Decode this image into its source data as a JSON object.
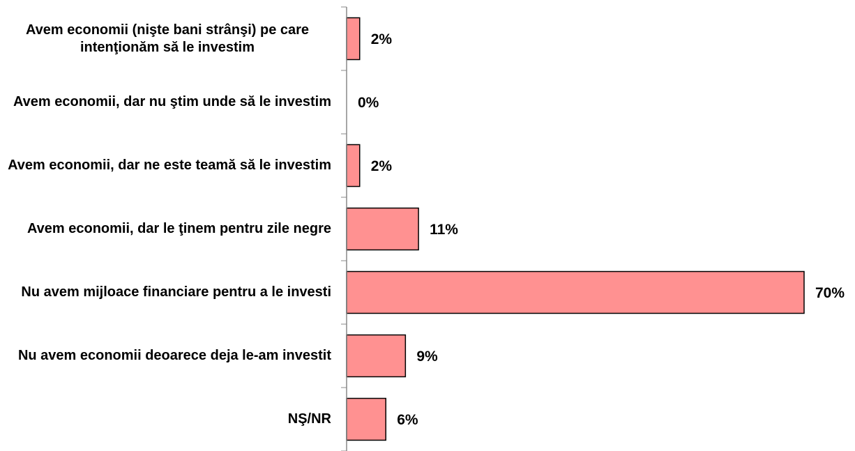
{
  "chart_data": {
    "type": "bar",
    "orientation": "horizontal",
    "categories": [
      "Avem economii (nişte bani strânşi) pe care intenţionăm să le investim",
      "Avem economii, dar nu ştim unde să le investim",
      "Avem economii, dar ne este teamă să le investim",
      "Avem economii, dar le ţinem pentru zile negre",
      "Nu avem mijloace financiare pentru a le investi",
      "Nu avem economii deoarece deja le-am investit",
      "NŞ/NR"
    ],
    "values": [
      2,
      0,
      2,
      11,
      70,
      9,
      6
    ],
    "value_labels": [
      "2%",
      "0%",
      "2%",
      "11%",
      "70%",
      "9%",
      "6%"
    ],
    "color": "#ff9191"
  }
}
